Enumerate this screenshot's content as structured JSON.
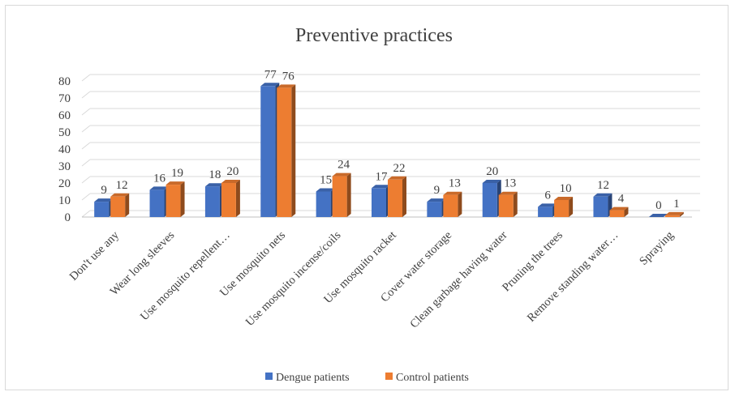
{
  "chart_data": {
    "type": "bar",
    "title": "Preventive practices",
    "xlabel": "",
    "ylabel": "",
    "ylim": [
      0,
      80
    ],
    "yticks": [
      0,
      10,
      20,
      30,
      40,
      50,
      60,
      70,
      80
    ],
    "grid": true,
    "legend_position": "bottom",
    "categories": [
      "Don't use any",
      "Wear long sleeves",
      "Use mosquito repellent…",
      "Use mosquito nets",
      "Use mosquito incense/coils",
      "Use mosquito racket",
      "Cover water storage",
      "Clean garbage having water",
      "Pruning the trees",
      "Remove standing water…",
      "Spraying"
    ],
    "series": [
      {
        "name": "Dengue patients",
        "color": "#4472C4",
        "values": [
          9,
          16,
          18,
          77,
          15,
          17,
          9,
          20,
          6,
          12,
          0
        ]
      },
      {
        "name": "Control patients",
        "color": "#ED7D31",
        "values": [
          12,
          19,
          20,
          76,
          24,
          22,
          13,
          13,
          10,
          4,
          1
        ]
      }
    ]
  }
}
